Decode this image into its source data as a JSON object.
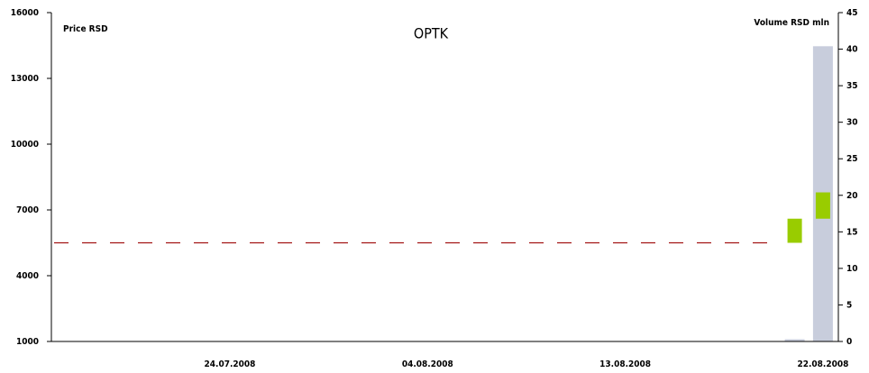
{
  "chart_data": {
    "type": "candlestick",
    "title": "OPTK",
    "ylabel": "Price RSD",
    "y2label": "Volume RSD mln",
    "categories": [
      null,
      null,
      null,
      null,
      null,
      null,
      "24.07.2008",
      null,
      null,
      null,
      null,
      null,
      null,
      "04.08.2008",
      null,
      null,
      null,
      null,
      null,
      null,
      "13.08.2008",
      null,
      null,
      null,
      null,
      null,
      null,
      "22.08.2008"
    ],
    "series": [
      {
        "type": "candle",
        "color": "#99cc00",
        "open": [
          null,
          null,
          null,
          null,
          null,
          null,
          null,
          null,
          null,
          null,
          null,
          null,
          null,
          null,
          null,
          null,
          null,
          null,
          null,
          null,
          null,
          null,
          null,
          null,
          null,
          null,
          5500,
          6600
        ],
        "close": [
          null,
          null,
          null,
          null,
          null,
          null,
          null,
          null,
          null,
          null,
          null,
          null,
          null,
          null,
          null,
          null,
          null,
          null,
          null,
          null,
          null,
          null,
          null,
          null,
          null,
          null,
          6600,
          7800
        ]
      },
      {
        "type": "bar",
        "axis": "y2",
        "color": "#c8cddc",
        "values": [
          null,
          null,
          null,
          null,
          null,
          null,
          null,
          null,
          null,
          null,
          null,
          null,
          null,
          null,
          null,
          null,
          null,
          null,
          null,
          null,
          null,
          null,
          null,
          null,
          null,
          null,
          0.3,
          40.4
        ]
      }
    ],
    "reference_line": {
      "value": 5500,
      "color": "#a31515"
    },
    "ylim": [
      1000,
      16000
    ],
    "yticks": [
      1000,
      4000,
      7000,
      10000,
      13000,
      16000
    ],
    "y2lim": [
      0,
      45
    ],
    "y2ticks": [
      0,
      5,
      10,
      15,
      20,
      25,
      30,
      35,
      40,
      45
    ]
  }
}
